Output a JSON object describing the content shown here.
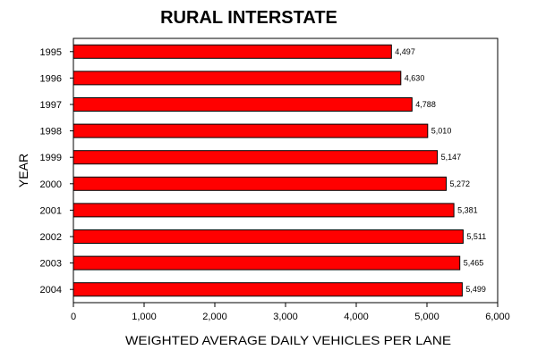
{
  "chart_data": {
    "type": "bar",
    "orientation": "horizontal",
    "title": "RURAL INTERSTATE",
    "xlabel": "WEIGHTED AVERAGE DAILY  VEHICLES PER LANE",
    "ylabel": "YEAR",
    "categories": [
      "1995",
      "1996",
      "1997",
      "1998",
      "1999",
      "2000",
      "2001",
      "2002",
      "2003",
      "2004"
    ],
    "values": [
      4497,
      4630,
      4788,
      5010,
      5147,
      5272,
      5381,
      5511,
      5465,
      5499
    ],
    "data_labels": [
      "4,497",
      "4,630",
      "4,788",
      "5,010",
      "5,147",
      "5,272",
      "5,381",
      "5,511",
      "5,465",
      "5,499"
    ],
    "xlim": [
      0,
      6000
    ],
    "xticks": [
      0,
      1000,
      2000,
      3000,
      4000,
      5000,
      6000
    ],
    "xtick_labels": [
      "0",
      "1,000",
      "2,000",
      "3,000",
      "4,000",
      "5,000",
      "6,000"
    ],
    "grid": false,
    "legend": "none",
    "colors": {
      "bar": "#ff0000",
      "bar_edge": "#000000"
    }
  }
}
